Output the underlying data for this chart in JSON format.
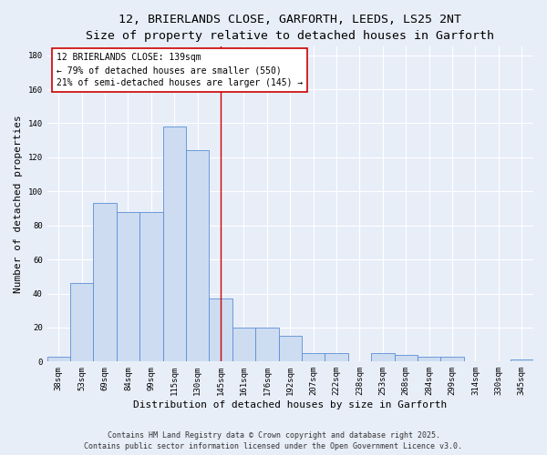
{
  "title_line1": "12, BRIERLANDS CLOSE, GARFORTH, LEEDS, LS25 2NT",
  "title_line2": "Size of property relative to detached houses in Garforth",
  "xlabel": "Distribution of detached houses by size in Garforth",
  "ylabel": "Number of detached properties",
  "categories": [
    "38sqm",
    "53sqm",
    "69sqm",
    "84sqm",
    "99sqm",
    "115sqm",
    "130sqm",
    "145sqm",
    "161sqm",
    "176sqm",
    "192sqm",
    "207sqm",
    "222sqm",
    "238sqm",
    "253sqm",
    "268sqm",
    "284sqm",
    "299sqm",
    "314sqm",
    "330sqm",
    "345sqm"
  ],
  "values": [
    3,
    46,
    93,
    88,
    88,
    138,
    124,
    37,
    20,
    20,
    15,
    5,
    5,
    0,
    5,
    4,
    3,
    3,
    0,
    0,
    1
  ],
  "bar_color": "#cddcf0",
  "bar_edge_color": "#5b8ed6",
  "bar_width": 1.0,
  "ylim": [
    0,
    185
  ],
  "yticks": [
    0,
    20,
    40,
    60,
    80,
    100,
    120,
    140,
    160,
    180
  ],
  "vline_x": 7.0,
  "vline_color": "#cc0000",
  "annotation_text": "12 BRIERLANDS CLOSE: 139sqm\n← 79% of detached houses are smaller (550)\n21% of semi-detached houses are larger (145) →",
  "annotation_box_facecolor": "#ffffff",
  "annotation_box_edgecolor": "#cc0000",
  "footer_line1": "Contains HM Land Registry data © Crown copyright and database right 2025.",
  "footer_line2": "Contains public sector information licensed under the Open Government Licence v3.0.",
  "background_color": "#e8eef8",
  "grid_color": "#ffffff",
  "title_fontsize": 9.5,
  "subtitle_fontsize": 8.5,
  "tick_fontsize": 6.5,
  "ylabel_fontsize": 8,
  "xlabel_fontsize": 8,
  "annotation_fontsize": 7,
  "footer_fontsize": 6
}
